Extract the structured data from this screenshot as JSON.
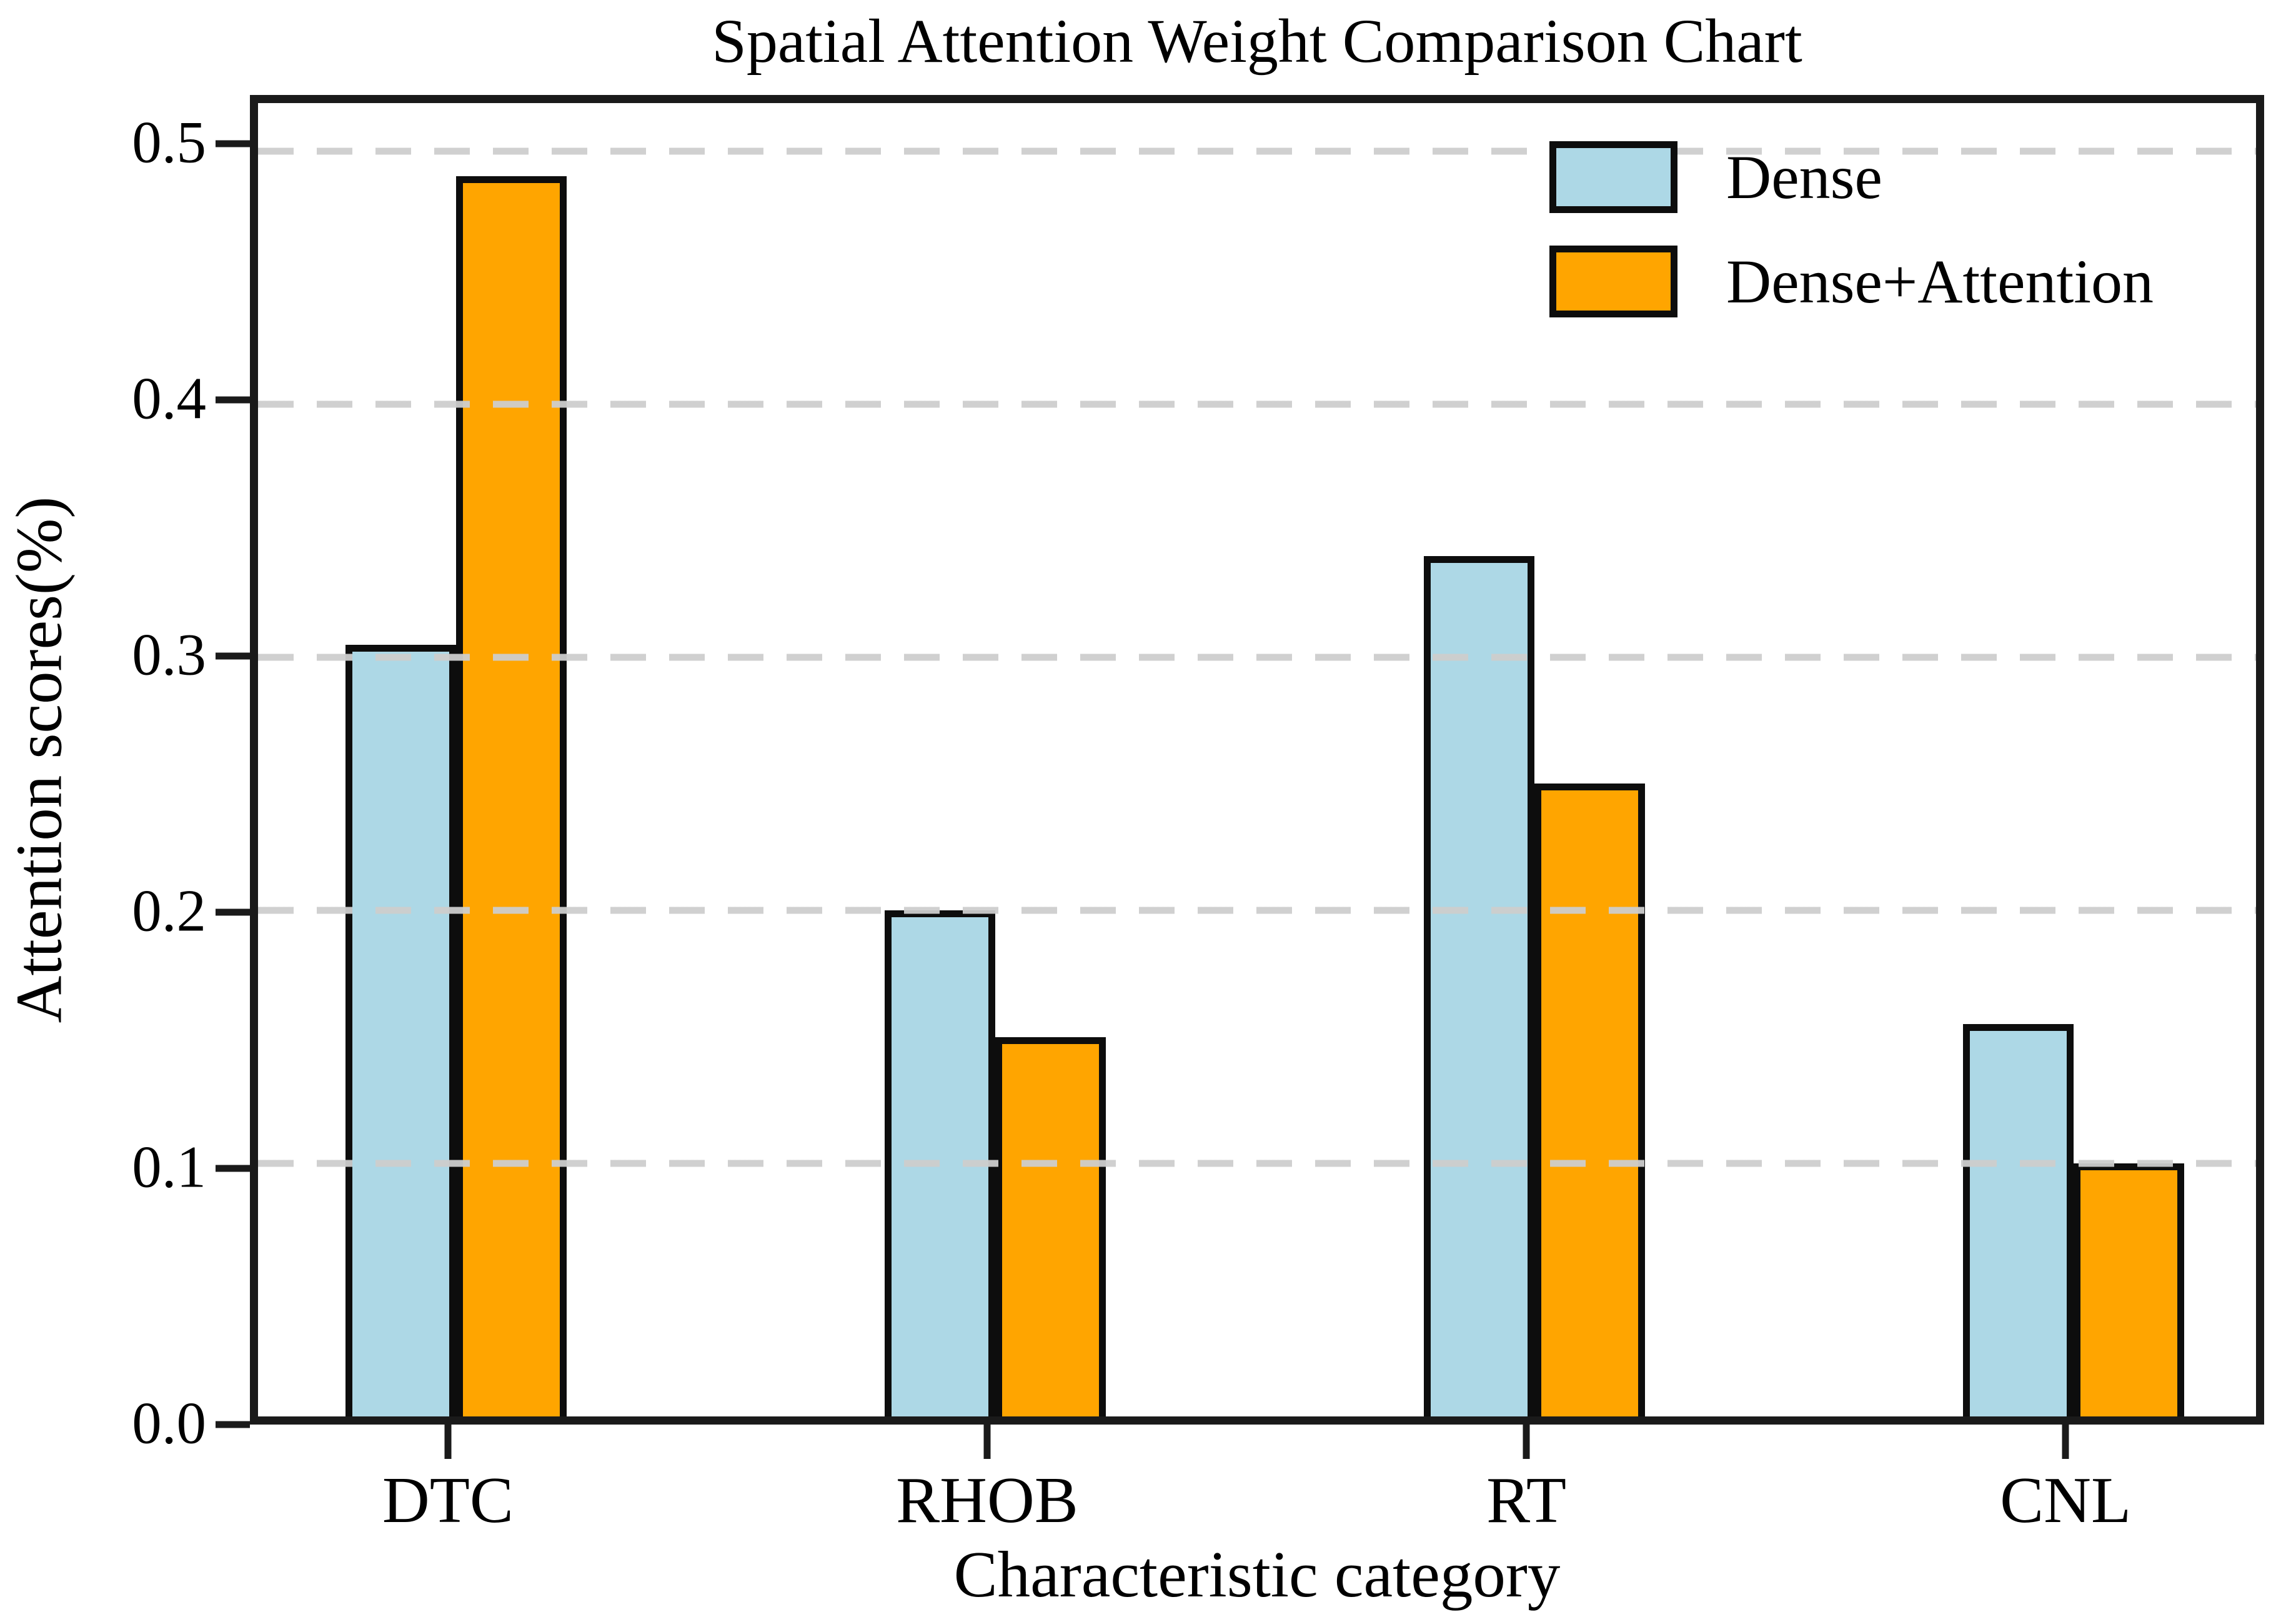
{
  "chart_data": {
    "type": "bar",
    "title": "Spatial Attention Weight Comparison Chart",
    "xlabel": "Characteristic category",
    "ylabel": "Attention scores(%)",
    "categories": [
      "DTC",
      "RHOB",
      "RT",
      "CNL"
    ],
    "series": [
      {
        "name": "Dense",
        "color": "#ADD8E6",
        "values": [
          0.305,
          0.2,
          0.34,
          0.155
        ]
      },
      {
        "name": "Dense+Attention",
        "color": "#FFA500",
        "values": [
          0.49,
          0.15,
          0.25,
          0.1
        ]
      }
    ],
    "ylim": [
      0,
      0.519
    ],
    "yticks": [
      0.0,
      0.1,
      0.2,
      0.3,
      0.4,
      0.5
    ],
    "ytick_format_decimals": 1,
    "grid": "horizontal-dashed",
    "grid_color": "#cdcdcd",
    "grid_above_bars": true,
    "legend_position": "upper-right",
    "legend_frame": false,
    "bar_edge_color": "#000000",
    "spine_color": "#1a1a1a",
    "background_color": "#ffffff"
  }
}
